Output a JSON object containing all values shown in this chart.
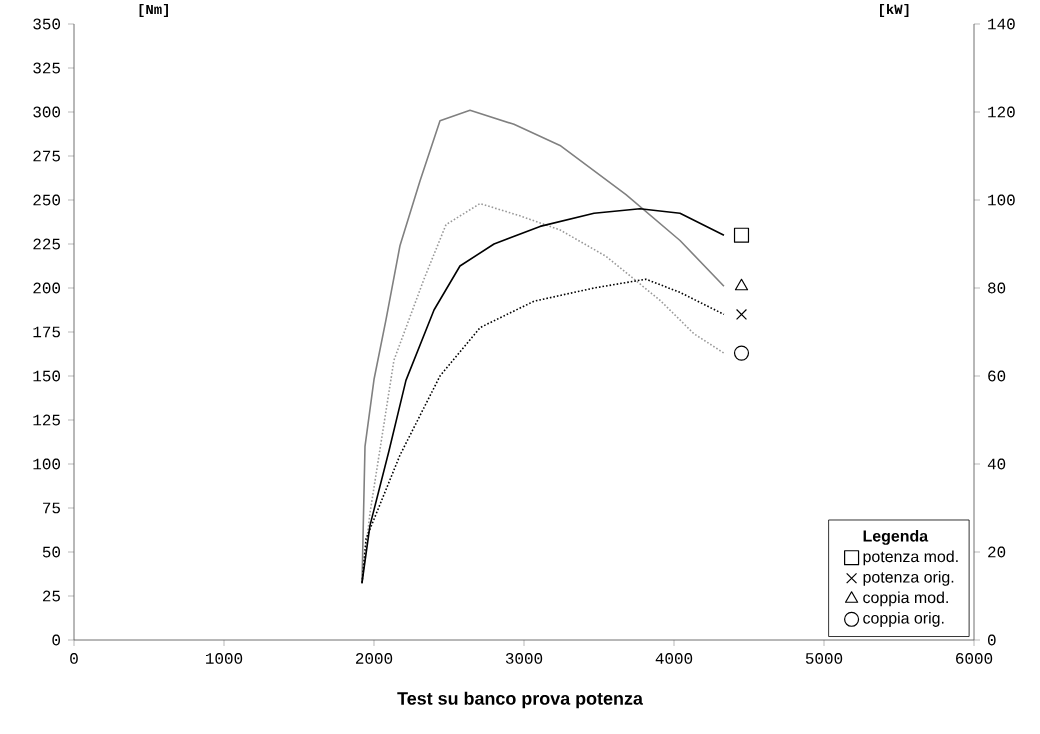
{
  "chart_data": {
    "type": "line",
    "title": "Test su banco prova potenza",
    "ylabel": "[Nm]",
    "y2label": "[kW]",
    "legend_title": "Legenda",
    "legend": "bottom right",
    "grid": false,
    "xlim": [
      0,
      6000
    ],
    "xticks": [
      0,
      1000,
      2000,
      3000,
      4000,
      5000,
      6000
    ],
    "ylim": [
      0,
      350
    ],
    "yticks": [
      0,
      25,
      50,
      75,
      100,
      125,
      150,
      175,
      200,
      225,
      250,
      275,
      300,
      325,
      350
    ],
    "y2lim": [
      0,
      140
    ],
    "y2ticks": [
      0,
      20,
      40,
      60,
      80,
      100,
      120,
      140
    ],
    "series": [
      {
        "axis": "y2",
        "color": "#000000",
        "line_style": "solid",
        "x": [
          1920,
          1973,
          2100,
          2213,
          2400,
          2573,
          2800,
          3107,
          3467,
          3773,
          4040,
          4333
        ],
        "values": [
          13,
          26,
          43,
          59,
          75,
          85,
          90,
          94,
          97,
          98,
          97,
          92
        ]
      },
      {
        "axis": "y2",
        "color": "#000000",
        "line_style": "dotted",
        "x": [
          1920,
          1947,
          2173,
          2440,
          2707,
          3067,
          3467,
          3813,
          4040,
          4333
        ],
        "values": [
          13,
          23,
          42,
          60,
          71,
          77,
          80,
          82,
          79,
          74
        ]
      },
      {
        "axis": "y",
        "color": "#808080",
        "line_style": "solid",
        "x": [
          1920,
          1940,
          2000,
          2080,
          2173,
          2307,
          2440,
          2640,
          2933,
          3240,
          3680,
          4040,
          4333
        ],
        "values": [
          32,
          110,
          148,
          182,
          224,
          261,
          295,
          301,
          293,
          281,
          253,
          227,
          201
        ]
      },
      {
        "axis": "y",
        "color": "#999999",
        "line_style": "dotted",
        "x": [
          1920,
          1973,
          2133,
          2333,
          2480,
          2707,
          2973,
          3240,
          3547,
          3907,
          4133,
          4333
        ],
        "values": [
          32,
          72,
          159,
          205,
          236,
          248,
          241,
          233,
          218,
          193,
          174,
          163
        ]
      },
      {
        "name": "potenza mod.",
        "type": "scatter",
        "axis": "y2",
        "color": "#000000",
        "marker": "square",
        "x": [
          4450
        ],
        "values": [
          92
        ]
      },
      {
        "name": "potenza orig.",
        "type": "scatter",
        "axis": "y2",
        "color": "#000000",
        "marker": "cross",
        "x": [
          4450
        ],
        "values": [
          74
        ]
      },
      {
        "name": "coppia mod.",
        "type": "scatter",
        "axis": "y",
        "color": "#000000",
        "marker": "triangle",
        "x": [
          4450
        ],
        "values": [
          201
        ]
      },
      {
        "name": "coppia orig.",
        "type": "scatter",
        "axis": "y",
        "color": "#000000",
        "marker": "circle",
        "x": [
          4450
        ],
        "values": [
          163
        ]
      }
    ]
  }
}
